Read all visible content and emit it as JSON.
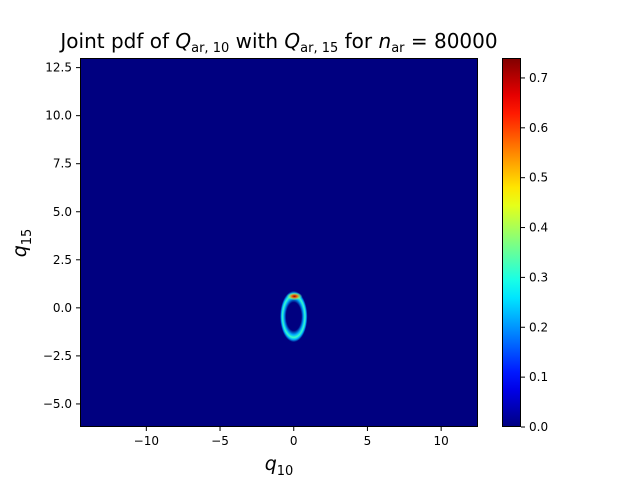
{
  "chart_data": {
    "type": "heatmap",
    "title": {
      "parts": [
        {
          "t": "Joint pdf of "
        },
        {
          "t": "Q",
          "italic": true
        },
        {
          "t": "ar, 10",
          "sub": true
        },
        {
          "t": " with "
        },
        {
          "t": "Q",
          "italic": true
        },
        {
          "t": "ar, 15",
          "sub": true
        },
        {
          "t": " for "
        },
        {
          "t": "n",
          "italic": true
        },
        {
          "t": "ar",
          "sub": true
        },
        {
          "t": " = 80000"
        }
      ]
    },
    "xlabel": {
      "base": "q",
      "sub": "10"
    },
    "ylabel": {
      "base": "q",
      "sub": "15"
    },
    "xlim": [
      -14.5,
      12.5
    ],
    "ylim": [
      -6.2,
      13.0
    ],
    "xticks": [
      -10,
      -5,
      0,
      5,
      10
    ],
    "xtick_labels": [
      "−10",
      "−5",
      "0",
      "5",
      "10"
    ],
    "yticks": [
      -5.0,
      -2.5,
      0.0,
      2.5,
      5.0,
      7.5,
      10.0,
      12.5
    ],
    "ytick_labels": [
      "−5.0",
      "−2.5",
      "0.0",
      "2.5",
      "5.0",
      "7.5",
      "10.0",
      "12.5"
    ],
    "colorbar": {
      "range": [
        0.0,
        0.74
      ],
      "ticks": [
        0.0,
        0.1,
        0.2,
        0.3,
        0.4,
        0.5,
        0.6,
        0.7
      ],
      "tick_labels": [
        "0.0",
        "0.1",
        "0.2",
        "0.3",
        "0.4",
        "0.5",
        "0.6",
        "0.7"
      ],
      "colormap": "jet"
    },
    "density_feature": {
      "shape": "ring",
      "center": [
        0.0,
        -0.45
      ],
      "radius_x": 0.65,
      "radius_y": 1.05,
      "ring_width": 0.28,
      "peak_location": [
        0.05,
        0.6
      ],
      "peak_value": 0.74
    }
  }
}
